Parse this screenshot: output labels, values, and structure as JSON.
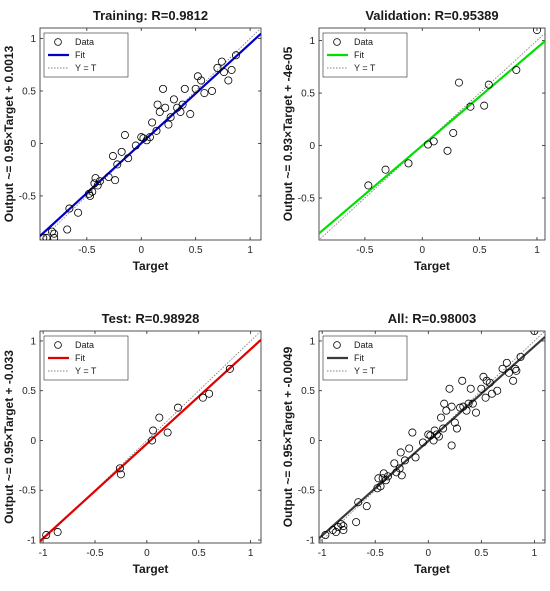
{
  "chart_data": [
    {
      "type": "scatter",
      "title": "Training: R=0.9812",
      "xlabel": "Target",
      "ylabel": "Output ~= 0.95×Target + 0.0013",
      "xlim": [
        -0.93,
        1.1
      ],
      "ylim": [
        -0.92,
        1.1
      ],
      "xticks": [
        -0.5,
        0,
        0.5,
        1
      ],
      "xtick_labels": [
        "-0.5",
        "0",
        "0.5",
        "1"
      ],
      "yticks": [
        -0.5,
        0,
        0.5,
        1
      ],
      "ytick_labels": [
        "-0.5",
        "0",
        "0.5",
        "1"
      ],
      "fit": {
        "slope": 0.95,
        "intercept": 0.0013
      },
      "fit_color": "#0000c8",
      "legend": {
        "position": "top-left",
        "entries": [
          "Data",
          "Fit",
          "Y = T"
        ]
      },
      "points": [
        [
          -0.9,
          -0.9
        ],
        [
          -0.87,
          -0.9
        ],
        [
          -0.82,
          -0.84
        ],
        [
          -0.8,
          -0.86
        ],
        [
          -0.8,
          -0.9
        ],
        [
          -0.68,
          -0.82
        ],
        [
          -0.66,
          -0.62
        ],
        [
          -0.58,
          -0.66
        ],
        [
          -0.48,
          -0.48
        ],
        [
          -0.47,
          -0.5
        ],
        [
          -0.45,
          -0.46
        ],
        [
          -0.43,
          -0.38
        ],
        [
          -0.42,
          -0.33
        ],
        [
          -0.4,
          -0.4
        ],
        [
          -0.38,
          -0.36
        ],
        [
          -0.3,
          -0.32
        ],
        [
          -0.26,
          -0.12
        ],
        [
          -0.24,
          -0.35
        ],
        [
          -0.22,
          -0.2
        ],
        [
          -0.18,
          -0.08
        ],
        [
          -0.15,
          0.08
        ],
        [
          -0.12,
          -0.14
        ],
        [
          -0.05,
          -0.02
        ],
        [
          0.0,
          0.06
        ],
        [
          0.02,
          0.05
        ],
        [
          0.05,
          0.03
        ],
        [
          0.08,
          0.06
        ],
        [
          0.1,
          0.2
        ],
        [
          0.14,
          0.12
        ],
        [
          0.15,
          0.37
        ],
        [
          0.17,
          0.3
        ],
        [
          0.2,
          0.52
        ],
        [
          0.22,
          0.34
        ],
        [
          0.25,
          0.18
        ],
        [
          0.27,
          0.25
        ],
        [
          0.3,
          0.42
        ],
        [
          0.33,
          0.34
        ],
        [
          0.36,
          0.3
        ],
        [
          0.38,
          0.37
        ],
        [
          0.4,
          0.52
        ],
        [
          0.45,
          0.28
        ],
        [
          0.5,
          0.52
        ],
        [
          0.52,
          0.64
        ],
        [
          0.55,
          0.6
        ],
        [
          0.58,
          0.48
        ],
        [
          0.65,
          0.5
        ],
        [
          0.7,
          0.72
        ],
        [
          0.74,
          0.78
        ],
        [
          0.76,
          0.68
        ],
        [
          0.8,
          0.6
        ],
        [
          0.83,
          0.7
        ],
        [
          0.87,
          0.84
        ]
      ]
    },
    {
      "type": "scatter",
      "title": "Validation: R=0.95389",
      "xlabel": "Target",
      "ylabel": "Output ~= 0.93×Target + -4e-05",
      "xlim": [
        -0.9,
        1.07
      ],
      "ylim": [
        -0.9,
        1.12
      ],
      "xticks": [
        -0.5,
        0,
        0.5,
        1
      ],
      "xtick_labels": [
        "-0.5",
        "0",
        "0.5",
        "1"
      ],
      "yticks": [
        -0.5,
        0,
        0.5,
        1
      ],
      "ytick_labels": [
        "-0.5",
        "0",
        "0.5",
        "1"
      ],
      "fit": {
        "slope": 0.93,
        "intercept": -4e-05
      },
      "fit_color": "#00e000",
      "legend": {
        "position": "top-left",
        "entries": [
          "Data",
          "Fit",
          "Y = T"
        ]
      },
      "points": [
        [
          -0.47,
          -0.38
        ],
        [
          -0.32,
          -0.23
        ],
        [
          -0.12,
          -0.17
        ],
        [
          0.05,
          0.01
        ],
        [
          0.1,
          0.04
        ],
        [
          0.22,
          -0.05
        ],
        [
          0.27,
          0.12
        ],
        [
          0.32,
          0.6
        ],
        [
          0.42,
          0.37
        ],
        [
          0.54,
          0.38
        ],
        [
          0.58,
          0.58
        ],
        [
          0.82,
          0.72
        ],
        [
          1.0,
          1.1
        ]
      ]
    },
    {
      "type": "scatter",
      "title": "Test: R=0.98928",
      "xlabel": "Target",
      "ylabel": "Output ~= 0.95×Target + -0.033",
      "xlim": [
        -1.03,
        1.1
      ],
      "ylim": [
        -1.03,
        1.1
      ],
      "xticks": [
        -1,
        -0.5,
        0,
        0.5,
        1
      ],
      "xtick_labels": [
        "-1",
        "-0.5",
        "0",
        "0.5",
        "1"
      ],
      "yticks": [
        -1,
        -0.5,
        0,
        0.5,
        1
      ],
      "ytick_labels": [
        "-1",
        "-0.5",
        "0",
        "0.5",
        "1"
      ],
      "fit": {
        "slope": 0.95,
        "intercept": -0.033
      },
      "fit_color": "#e00000",
      "legend": {
        "position": "top-left",
        "entries": [
          "Data",
          "Fit",
          "Y = T"
        ]
      },
      "points": [
        [
          -0.97,
          -0.95
        ],
        [
          -0.86,
          -0.92
        ],
        [
          -0.26,
          -0.28
        ],
        [
          -0.25,
          -0.34
        ],
        [
          0.05,
          0.0
        ],
        [
          0.06,
          0.1
        ],
        [
          0.12,
          0.23
        ],
        [
          0.2,
          0.08
        ],
        [
          0.3,
          0.33
        ],
        [
          0.54,
          0.43
        ],
        [
          0.6,
          0.47
        ],
        [
          0.8,
          0.72
        ]
      ]
    },
    {
      "type": "scatter",
      "title": "All: R=0.98003",
      "xlabel": "Target",
      "ylabel": "Output ~= 0.95×Target + -0.0049",
      "xlim": [
        -1.03,
        1.1
      ],
      "ylim": [
        -1.03,
        1.1
      ],
      "xticks": [
        -1,
        -0.5,
        0,
        0.5,
        1
      ],
      "xtick_labels": [
        "-1",
        "-0.5",
        "0",
        "0.5",
        "1"
      ],
      "yticks": [
        -1,
        -0.5,
        0,
        0.5,
        1
      ],
      "ytick_labels": [
        "-1",
        "-0.5",
        "0",
        "0.5",
        "1"
      ],
      "fit": {
        "slope": 0.95,
        "intercept": -0.0049
      },
      "fit_color": "#3a3a3a",
      "legend": {
        "position": "top-left",
        "entries": [
          "Data",
          "Fit",
          "Y = T"
        ]
      },
      "points": [
        [
          -0.97,
          -0.95
        ],
        [
          -0.9,
          -0.9
        ],
        [
          -0.87,
          -0.92
        ],
        [
          -0.85,
          -0.87
        ],
        [
          -0.82,
          -0.84
        ],
        [
          -0.8,
          -0.86
        ],
        [
          -0.8,
          -0.9
        ],
        [
          -0.68,
          -0.82
        ],
        [
          -0.66,
          -0.62
        ],
        [
          -0.58,
          -0.66
        ],
        [
          -0.48,
          -0.48
        ],
        [
          -0.47,
          -0.38
        ],
        [
          -0.45,
          -0.46
        ],
        [
          -0.43,
          -0.38
        ],
        [
          -0.42,
          -0.33
        ],
        [
          -0.4,
          -0.4
        ],
        [
          -0.38,
          -0.36
        ],
        [
          -0.32,
          -0.23
        ],
        [
          -0.3,
          -0.32
        ],
        [
          -0.27,
          -0.28
        ],
        [
          -0.26,
          -0.12
        ],
        [
          -0.25,
          -0.35
        ],
        [
          -0.22,
          -0.2
        ],
        [
          -0.18,
          -0.08
        ],
        [
          -0.15,
          0.08
        ],
        [
          -0.12,
          -0.17
        ],
        [
          -0.05,
          -0.02
        ],
        [
          0.0,
          0.06
        ],
        [
          0.02,
          0.05
        ],
        [
          0.05,
          0.0
        ],
        [
          0.06,
          0.1
        ],
        [
          0.08,
          0.06
        ],
        [
          0.1,
          0.04
        ],
        [
          0.12,
          0.23
        ],
        [
          0.14,
          0.12
        ],
        [
          0.15,
          0.37
        ],
        [
          0.17,
          0.3
        ],
        [
          0.2,
          0.52
        ],
        [
          0.22,
          -0.05
        ],
        [
          0.22,
          0.34
        ],
        [
          0.25,
          0.18
        ],
        [
          0.27,
          0.12
        ],
        [
          0.3,
          0.33
        ],
        [
          0.32,
          0.6
        ],
        [
          0.33,
          0.34
        ],
        [
          0.36,
          0.3
        ],
        [
          0.38,
          0.37
        ],
        [
          0.4,
          0.52
        ],
        [
          0.42,
          0.37
        ],
        [
          0.45,
          0.28
        ],
        [
          0.5,
          0.52
        ],
        [
          0.52,
          0.64
        ],
        [
          0.54,
          0.43
        ],
        [
          0.55,
          0.6
        ],
        [
          0.58,
          0.58
        ],
        [
          0.6,
          0.47
        ],
        [
          0.65,
          0.5
        ],
        [
          0.7,
          0.72
        ],
        [
          0.74,
          0.78
        ],
        [
          0.76,
          0.68
        ],
        [
          0.8,
          0.6
        ],
        [
          0.82,
          0.72
        ],
        [
          0.83,
          0.7
        ],
        [
          0.87,
          0.84
        ],
        [
          1.0,
          1.1
        ]
      ]
    }
  ],
  "style": {
    "identity_line_color": "#808080",
    "marker_color": "#000000",
    "axes_color": "#262626"
  }
}
